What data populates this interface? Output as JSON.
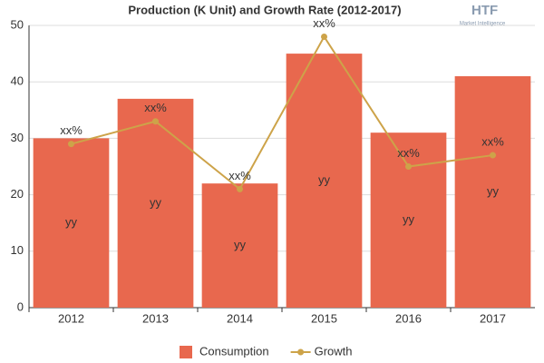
{
  "chart_data": {
    "type": "bar-line",
    "title": "Production (K Unit) and Growth Rate (2012-2017)",
    "categories": [
      "2012",
      "2013",
      "2014",
      "2015",
      "2016",
      "2017"
    ],
    "series": [
      {
        "name": "Consumption",
        "type": "bar",
        "color": "#e8684e",
        "values": [
          30,
          37,
          22,
          45,
          31,
          41
        ],
        "value_labels": [
          "yy",
          "yy",
          "yy",
          "yy",
          "yy",
          "yy"
        ]
      },
      {
        "name": "Growth",
        "type": "line",
        "color": "#cda349",
        "values": [
          29,
          33,
          21,
          48,
          25,
          27
        ],
        "value_labels": [
          "xx%",
          "xx%",
          "xx%",
          "xx%",
          "xx%",
          "xx%"
        ]
      }
    ],
    "ylim": [
      0,
      50
    ],
    "yticks": [
      0,
      10,
      20,
      30,
      40,
      50
    ],
    "grid": true,
    "legend": "bottom"
  },
  "logo": {
    "name": "HTF",
    "tagline": "Market Intelligence"
  }
}
